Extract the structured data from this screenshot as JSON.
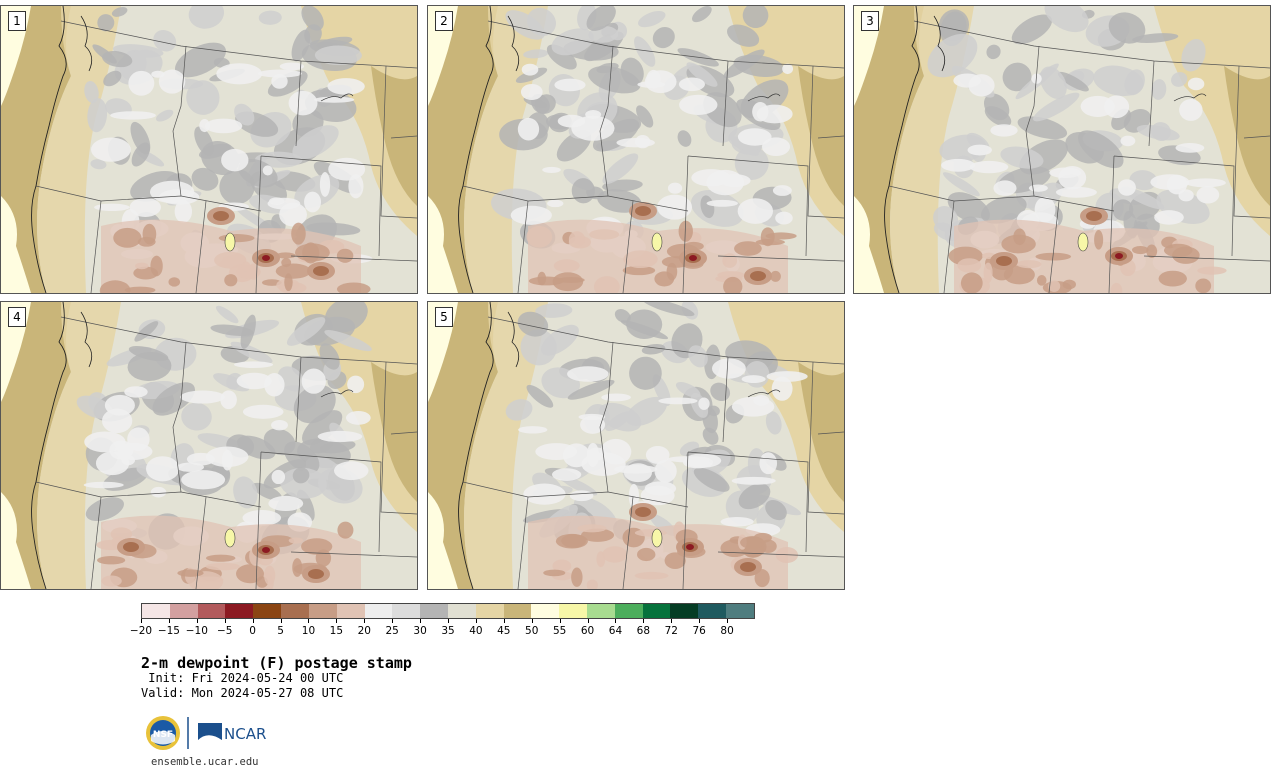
{
  "panels": [
    {
      "label": "1",
      "seed": 3,
      "warm": [
        [
          265,
          252
        ],
        [
          220,
          210
        ],
        [
          320,
          265
        ]
      ]
    },
    {
      "label": "2",
      "seed": 7,
      "warm": [
        [
          265,
          252
        ],
        [
          215,
          205
        ],
        [
          330,
          270
        ]
      ]
    },
    {
      "label": "3",
      "seed": 11,
      "warm": [
        [
          265,
          250
        ],
        [
          240,
          210
        ],
        [
          150,
          255
        ]
      ]
    },
    {
      "label": "4",
      "seed": 5,
      "warm": [
        [
          265,
          248
        ],
        [
          315,
          272
        ],
        [
          130,
          245
        ]
      ]
    },
    {
      "label": "5",
      "seed": 9,
      "warm": [
        [
          262,
          245
        ],
        [
          215,
          210
        ],
        [
          320,
          265
        ]
      ]
    }
  ],
  "colorbar": {
    "colors": [
      "#f5e6e6",
      "#d3a0a0",
      "#b25a5c",
      "#8c1a22",
      "#8b4513",
      "#a86f50",
      "#c79d86",
      "#e0c3b4",
      "#eeeeee",
      "#dcdcdc",
      "#b4b4b4",
      "#e0dfd2",
      "#e5d5a5",
      "#c9b579",
      "#fffde0",
      "#f7f7a8",
      "#a8dc90",
      "#4cae5c",
      "#06723c",
      "#053d25",
      "#1f5a5f",
      "#4f7d7f"
    ],
    "ticks": [
      "−20",
      "−15",
      "−10",
      "−5",
      "0",
      "5",
      "10",
      "15",
      "20",
      "25",
      "30",
      "35",
      "40",
      "45",
      "50",
      "55",
      "60",
      "64",
      "68",
      "72",
      "76",
      "80"
    ]
  },
  "title": "2-m dewpoint (F) postage stamp",
  "init": " Init: Fri 2024-05-24 00 UTC",
  "valid": "Valid: Mon 2024-05-27 08 UTC",
  "logos": {
    "nsf": "NSF",
    "ncar": "NCAR"
  },
  "url": "ensemble.ucar.edu"
}
